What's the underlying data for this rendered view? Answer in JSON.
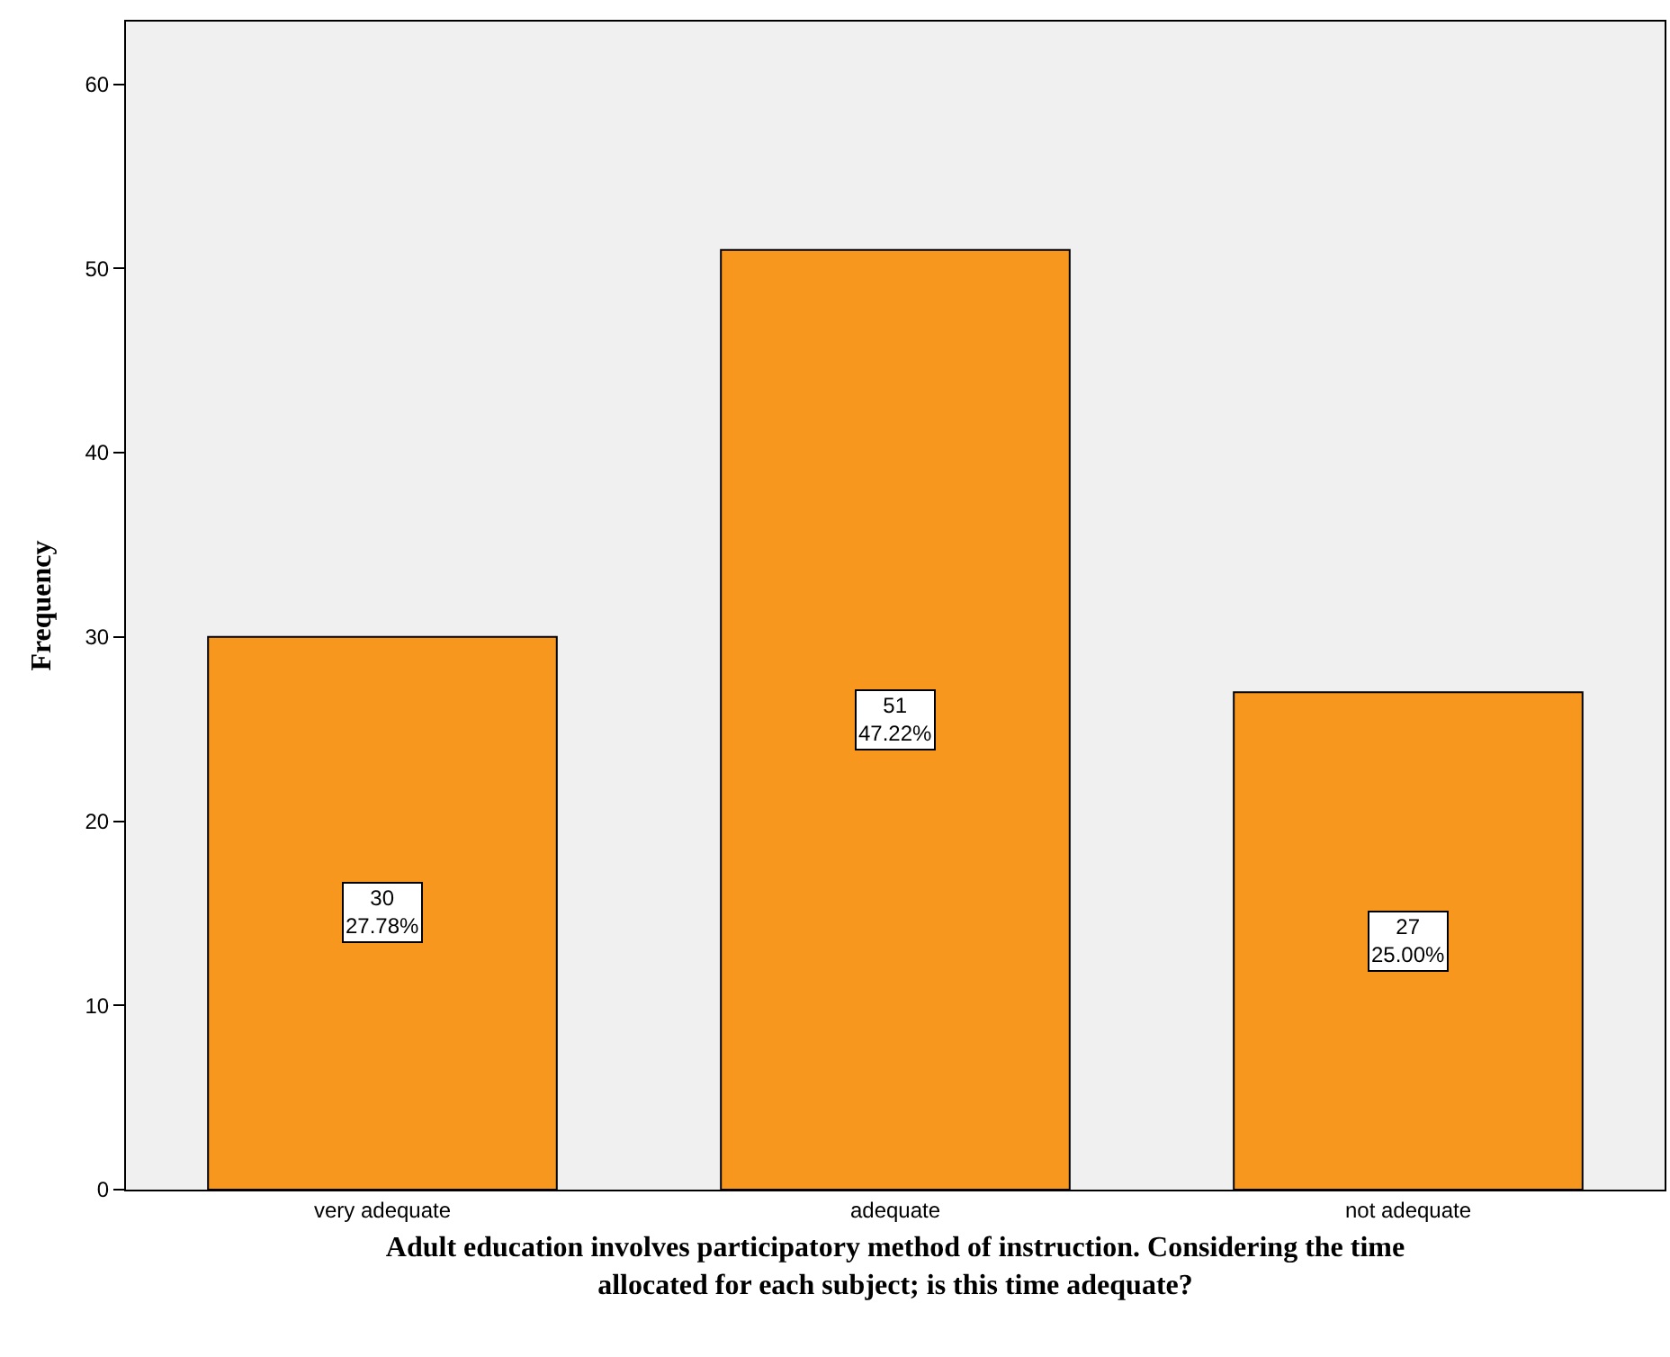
{
  "chart_data": {
    "type": "bar",
    "categories": [
      "very adequate",
      "adequate",
      "not adequate"
    ],
    "values": [
      30,
      51,
      27
    ],
    "color": "#f7971e",
    "value_labels": [
      "30\n27.78%",
      "51\n47.22%",
      "27\n25.00%"
    ],
    "xlabel": "Adult education involves participatory method of instruction. Considering the time\nallocated for each subject; is this time adequate?",
    "ylabel": "Frequency",
    "ylim": [
      0,
      63.4
    ],
    "yticks": [
      0,
      10,
      20,
      30,
      40,
      50,
      60
    ]
  }
}
